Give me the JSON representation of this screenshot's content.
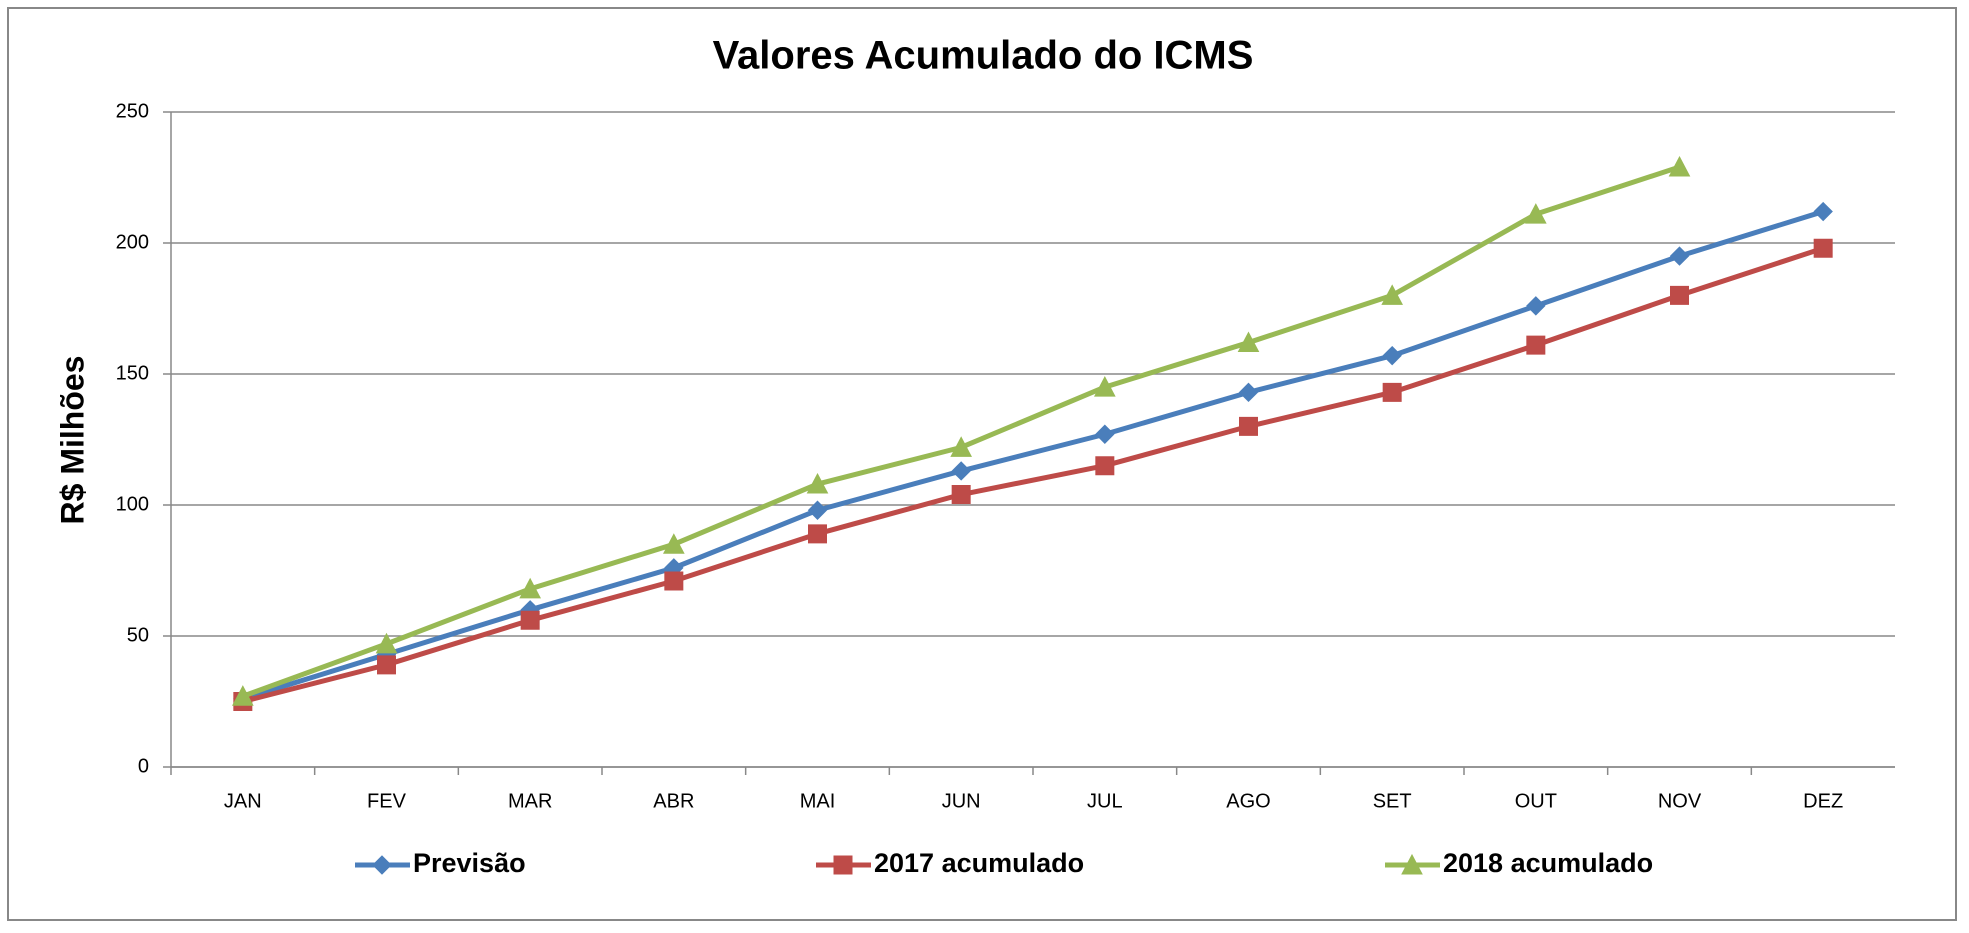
{
  "chart_data": {
    "type": "line",
    "title": "Valores Acumulado do ICMS",
    "y_label": "R$ Milhões",
    "categories": [
      "JAN",
      "FEV",
      "MAR",
      "ABR",
      "MAI",
      "JUN",
      "JUL",
      "AGO",
      "SET",
      "OUT",
      "NOV",
      "DEZ"
    ],
    "series": [
      {
        "name": "Previsão",
        "color": "#4a7ebb",
        "marker": "diamond",
        "values": [
          26,
          43,
          60,
          76,
          98,
          113,
          127,
          143,
          157,
          176,
          195,
          212
        ]
      },
      {
        "name": "2017 acumulado",
        "color": "#be4b48",
        "marker": "square",
        "values": [
          25,
          39,
          56,
          71,
          89,
          104,
          115,
          130,
          143,
          161,
          180,
          198
        ]
      },
      {
        "name": "2018 acumulado",
        "color": "#98b954",
        "marker": "triangle",
        "values": [
          27,
          47,
          68,
          85,
          108,
          122,
          145,
          162,
          180,
          211,
          229,
          null
        ]
      }
    ],
    "ylim": [
      0,
      250
    ],
    "yticks": [
      0,
      50,
      100,
      150,
      200,
      250
    ],
    "grid": true,
    "legend": "bottom"
  }
}
